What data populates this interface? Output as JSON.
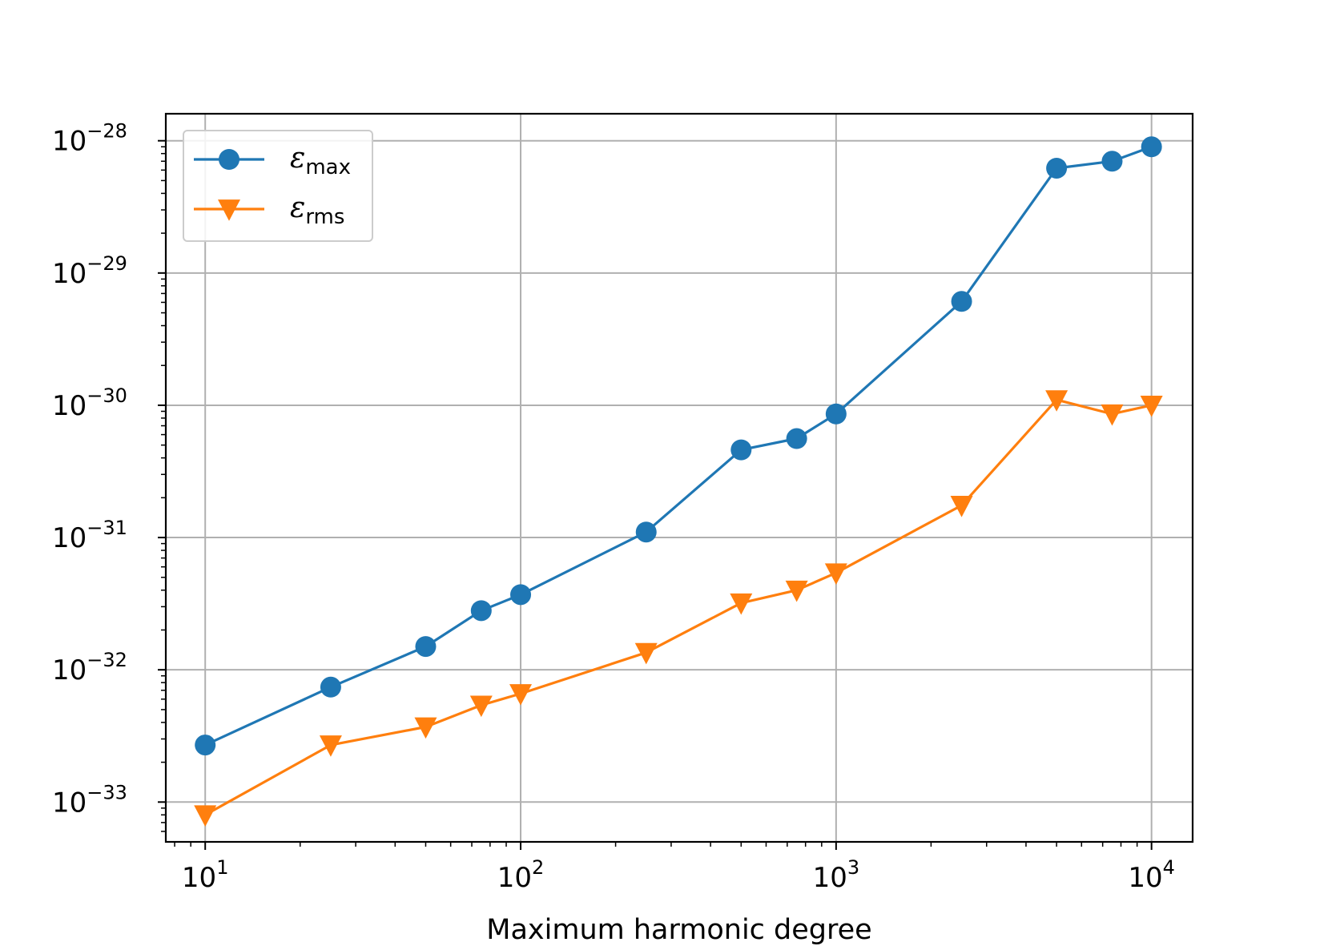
{
  "chart_data": {
    "type": "line",
    "xlabel": "Maximum harmonic degree",
    "ylabel": "",
    "xscale": "log",
    "yscale": "log",
    "xlim": [
      7.5,
      13500
    ],
    "ylim": [
      5e-34,
      1.6e-28
    ],
    "grid": true,
    "legend_position": "top-left",
    "x_ticks": [
      {
        "base": "10",
        "exp": "1",
        "value": 10
      },
      {
        "base": "10",
        "exp": "2",
        "value": 100
      },
      {
        "base": "10",
        "exp": "3",
        "value": 1000
      },
      {
        "base": "10",
        "exp": "4",
        "value": 10000
      }
    ],
    "y_ticks": [
      {
        "base": "10",
        "exp": "−28",
        "value": 1e-28
      },
      {
        "base": "10",
        "exp": "−29",
        "value": 1e-29
      },
      {
        "base": "10",
        "exp": "−30",
        "value": 1e-30
      },
      {
        "base": "10",
        "exp": "−31",
        "value": 1e-31
      },
      {
        "base": "10",
        "exp": "−32",
        "value": 1e-32
      },
      {
        "base": "10",
        "exp": "−33",
        "value": 1e-33
      }
    ],
    "x": [
      10,
      25,
      50,
      75,
      100,
      250,
      500,
      750,
      1000,
      2500,
      5000,
      7500,
      10000
    ],
    "series": [
      {
        "symbol": "ε",
        "subscript": "max",
        "marker": "circle",
        "color": "#1f77b4",
        "values": [
          2.7e-33,
          7.4e-33,
          1.5e-32,
          2.8e-32,
          3.7e-32,
          1.1e-31,
          4.6e-31,
          5.6e-31,
          8.6e-31,
          6.1e-30,
          6.2e-29,
          7e-29,
          9e-29
        ]
      },
      {
        "symbol": "ε",
        "subscript": "rms",
        "marker": "triangle-down",
        "color": "#ff7f0e",
        "values": [
          8e-34,
          2.7e-33,
          3.7e-33,
          5.4e-33,
          6.6e-33,
          1.35e-32,
          3.2e-32,
          4e-32,
          5.4e-32,
          1.75e-31,
          1.1e-30,
          8.6e-31,
          1e-30
        ]
      }
    ]
  }
}
